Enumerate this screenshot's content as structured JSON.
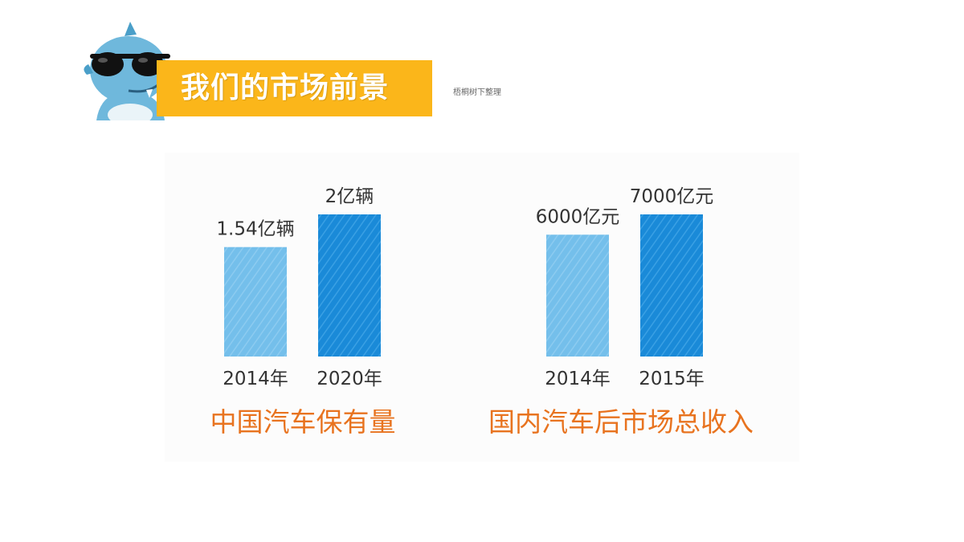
{
  "header": {
    "title": "我们的市场前景",
    "credit": "梧桐树下整理"
  },
  "colors": {
    "banner": "#fbb61a",
    "bar_light": "#74bfeb",
    "bar_dark": "#1a8ad8",
    "title_orange": "#e8731f"
  },
  "chart_data": [
    {
      "type": "bar",
      "title": "中国汽车保有量",
      "categories": [
        "2014年",
        "2020年"
      ],
      "values": [
        1.54,
        2
      ],
      "value_labels": [
        "1.54亿辆",
        "2亿辆"
      ],
      "unit": "亿辆",
      "ylim": [
        0,
        2.5
      ],
      "grid": false,
      "legend": "none"
    },
    {
      "type": "bar",
      "title": "国内汽车后市场总收入",
      "categories": [
        "2014年",
        "2015年"
      ],
      "values": [
        6000,
        7000
      ],
      "value_labels": [
        "6000亿元",
        "7000亿元"
      ],
      "unit": "亿元",
      "ylim": [
        0,
        8000
      ],
      "grid": false,
      "legend": "none"
    }
  ]
}
